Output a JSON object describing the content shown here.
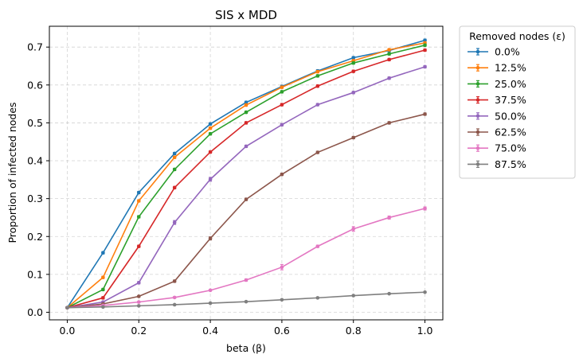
{
  "chart_data": {
    "type": "line",
    "title": "SIS x MDD",
    "xlabel": "beta (β)",
    "ylabel": "Proportion of infected nodes",
    "xlim": [
      -0.05,
      1.05
    ],
    "ylim": [
      -0.02,
      0.755
    ],
    "xticks": [
      0.0,
      0.2,
      0.4,
      0.6,
      0.8,
      1.0
    ],
    "xtick_labels": [
      "0.0",
      "0.2",
      "0.4",
      "0.6",
      "0.8",
      "1.0"
    ],
    "yticks": [
      0.0,
      0.1,
      0.2,
      0.3,
      0.4,
      0.5,
      0.6,
      0.7
    ],
    "ytick_labels": [
      "0.0",
      "0.1",
      "0.2",
      "0.3",
      "0.4",
      "0.5",
      "0.6",
      "0.7"
    ],
    "grid": true,
    "legend_title": "Removed nodes (ε)",
    "legend_placement": "outside-upper-right",
    "x": [
      0.0,
      0.1,
      0.2,
      0.3,
      0.4,
      0.5,
      0.6,
      0.7,
      0.8,
      0.9,
      1.0
    ],
    "series": [
      {
        "name": "0.0%",
        "color": "#1f77b4",
        "values": [
          0.012,
          0.157,
          0.316,
          0.419,
          0.497,
          0.554,
          0.596,
          0.637,
          0.672,
          0.691,
          0.718
        ],
        "errors": [
          0.002,
          0.003,
          0.003,
          0.003,
          0.003,
          0.003,
          0.003,
          0.003,
          0.003,
          0.003,
          0.003
        ]
      },
      {
        "name": "12.5%",
        "color": "#ff7f0e",
        "values": [
          0.012,
          0.092,
          0.294,
          0.409,
          0.486,
          0.547,
          0.594,
          0.635,
          0.664,
          0.693,
          0.711
        ],
        "errors": [
          0.002,
          0.003,
          0.003,
          0.003,
          0.003,
          0.003,
          0.003,
          0.003,
          0.003,
          0.003,
          0.003
        ]
      },
      {
        "name": "25.0%",
        "color": "#2ca02c",
        "values": [
          0.012,
          0.06,
          0.252,
          0.377,
          0.471,
          0.528,
          0.582,
          0.624,
          0.658,
          0.682,
          0.705
        ],
        "errors": [
          0.002,
          0.003,
          0.003,
          0.003,
          0.003,
          0.003,
          0.003,
          0.003,
          0.003,
          0.003,
          0.003
        ]
      },
      {
        "name": "37.5%",
        "color": "#d62728",
        "values": [
          0.012,
          0.038,
          0.174,
          0.329,
          0.423,
          0.5,
          0.548,
          0.597,
          0.636,
          0.667,
          0.692
        ],
        "errors": [
          0.002,
          0.003,
          0.003,
          0.003,
          0.003,
          0.003,
          0.003,
          0.003,
          0.003,
          0.003,
          0.003
        ]
      },
      {
        "name": "50.0%",
        "color": "#9467bd",
        "values": [
          0.012,
          0.027,
          0.078,
          0.237,
          0.351,
          0.438,
          0.495,
          0.548,
          0.58,
          0.618,
          0.648
        ],
        "errors": [
          0.002,
          0.002,
          0.003,
          0.005,
          0.005,
          0.003,
          0.003,
          0.003,
          0.003,
          0.003,
          0.003
        ]
      },
      {
        "name": "62.5%",
        "color": "#8c564b",
        "values": [
          0.012,
          0.022,
          0.042,
          0.082,
          0.195,
          0.298,
          0.364,
          0.422,
          0.461,
          0.5,
          0.523
        ],
        "errors": [
          0.002,
          0.002,
          0.002,
          0.003,
          0.004,
          0.003,
          0.003,
          0.003,
          0.003,
          0.003,
          0.003
        ]
      },
      {
        "name": "75.0%",
        "color": "#e377c2",
        "values": [
          0.012,
          0.018,
          0.027,
          0.039,
          0.058,
          0.085,
          0.119,
          0.174,
          0.22,
          0.25,
          0.274
        ],
        "errors": [
          0.002,
          0.002,
          0.002,
          0.002,
          0.002,
          0.003,
          0.007,
          0.003,
          0.006,
          0.004,
          0.004
        ]
      },
      {
        "name": "87.5%",
        "color": "#7f7f7f",
        "values": [
          0.012,
          0.014,
          0.017,
          0.02,
          0.024,
          0.028,
          0.033,
          0.038,
          0.044,
          0.049,
          0.053
        ],
        "errors": [
          0.001,
          0.001,
          0.001,
          0.001,
          0.001,
          0.001,
          0.001,
          0.001,
          0.001,
          0.001,
          0.001
        ]
      }
    ]
  }
}
